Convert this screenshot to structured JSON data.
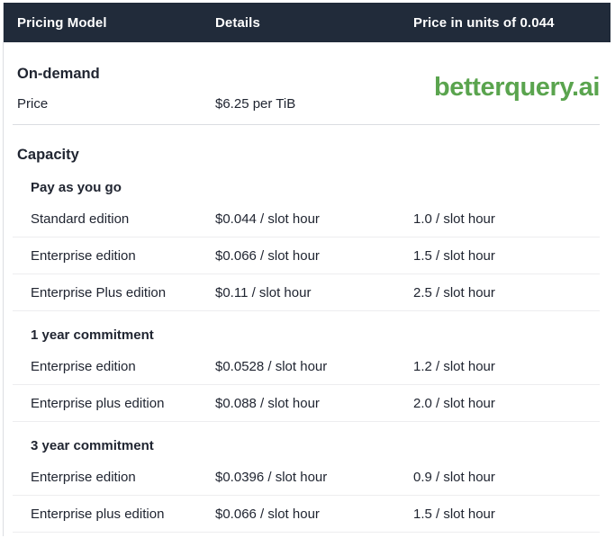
{
  "brand": {
    "watermark": "betterquery.ai",
    "color": "#5aa44e"
  },
  "colors": {
    "header_bg": "#212b3a",
    "header_text": "#ffffff",
    "body_text": "#202531",
    "row_divider": "#ededef",
    "section_divider": "#dbdde1",
    "left_border": "#dcdee2"
  },
  "table": {
    "columns": [
      {
        "label": "Pricing Model"
      },
      {
        "label": "Details"
      },
      {
        "label": "Price in units of 0.044"
      }
    ],
    "on_demand": {
      "title": "On-demand",
      "rows": [
        {
          "label": "Price",
          "details": "$6.25 per TiB",
          "price": ""
        }
      ]
    },
    "capacity": {
      "title": "Capacity",
      "groups": [
        {
          "subtitle": "Pay as you go",
          "rows": [
            {
              "label": "Standard edition",
              "details": "$0.044 / slot hour",
              "price": "1.0 / slot hour"
            },
            {
              "label": "Enterprise edition",
              "details": "$0.066 / slot hour",
              "price": "1.5 / slot hour"
            },
            {
              "label": "Enterprise Plus edition",
              "details": "$0.11 / slot hour",
              "price": "2.5 / slot hour"
            }
          ]
        },
        {
          "subtitle": "1 year commitment",
          "rows": [
            {
              "label": "Enterprise edition",
              "details": "$0.0528 / slot hour",
              "price": "1.2 / slot hour"
            },
            {
              "label": "Enterprise plus edition",
              "details": "$0.088 / slot hour",
              "price": "2.0 / slot hour"
            }
          ]
        },
        {
          "subtitle": "3 year commitment",
          "rows": [
            {
              "label": "Enterprise edition",
              "details": "$0.0396 / slot hour",
              "price": "0.9 / slot hour"
            },
            {
              "label": "Enterprise plus edition",
              "details": "$0.066 / slot hour",
              "price": "1.5 / slot hour"
            }
          ]
        }
      ]
    }
  }
}
